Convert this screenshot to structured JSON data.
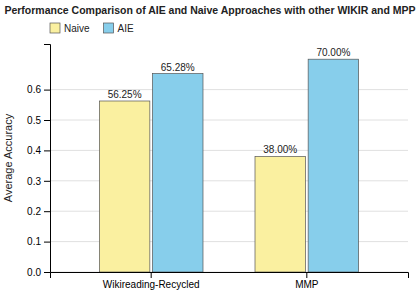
{
  "chart_data": {
    "type": "bar",
    "title": "Performance Comparison of AIE and Naive Approaches with other WIKIR and MPP",
    "ylabel": "Average Accuracy",
    "categories": [
      "Wikireading-Recycled",
      "MMP"
    ],
    "series": [
      {
        "name": "Naive",
        "color": "#FAF0A0",
        "values": [
          0.5625,
          0.38
        ],
        "value_labels": [
          "56.25%",
          "38.00%"
        ]
      },
      {
        "name": "AIE",
        "color": "#87CEEB",
        "values": [
          0.6528,
          0.7
        ],
        "value_labels": [
          "65.28%",
          "70.00%"
        ]
      }
    ],
    "ylim": [
      0,
      0.75
    ],
    "yticks": [
      {
        "value": 0.0,
        "label": "0.0"
      },
      0.1,
      0.2,
      0.3,
      0.4,
      0.5,
      0.6
    ],
    "grid": true,
    "legend": "upper left",
    "data_labels": true
  }
}
